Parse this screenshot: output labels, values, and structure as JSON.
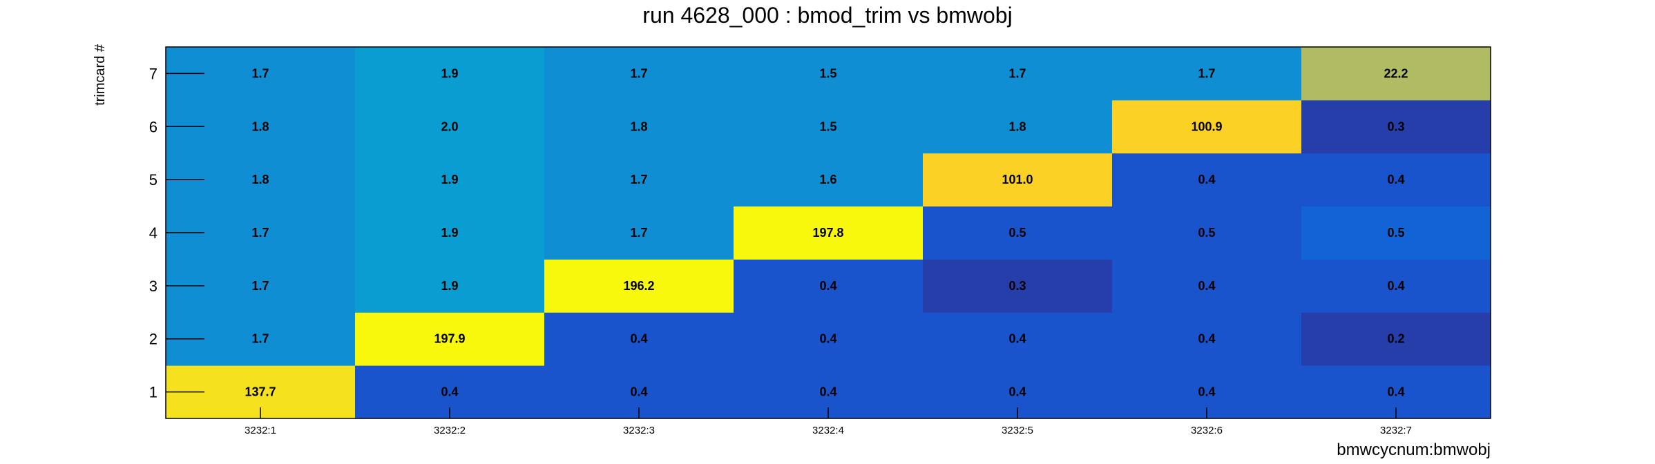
{
  "chart_data": {
    "type": "heatmap",
    "title": "run 4628_000 : bmod_trim vs bmwobj",
    "xlabel": "bmwcycnum:bmwobj",
    "ylabel": "trimcard #",
    "x_categories": [
      "3232:1",
      "3232:2",
      "3232:3",
      "3232:4",
      "3232:5",
      "3232:6",
      "3232:7"
    ],
    "y_categories": [
      "1",
      "2",
      "3",
      "4",
      "5",
      "6",
      "7"
    ],
    "values": [
      [
        137.7,
        0.4,
        0.4,
        0.4,
        0.4,
        0.4,
        0.4
      ],
      [
        1.7,
        197.9,
        0.4,
        0.4,
        0.4,
        0.4,
        0.2
      ],
      [
        1.7,
        1.9,
        196.2,
        0.4,
        0.3,
        0.4,
        0.4
      ],
      [
        1.7,
        1.9,
        1.7,
        197.8,
        0.5,
        0.5,
        0.5
      ],
      [
        1.8,
        1.9,
        1.7,
        1.6,
        101.0,
        0.4,
        0.4
      ],
      [
        1.8,
        2.0,
        1.8,
        1.5,
        1.8,
        100.9,
        0.3
      ],
      [
        1.7,
        1.9,
        1.7,
        1.5,
        1.7,
        1.7,
        22.2
      ]
    ],
    "value_labels": [
      [
        "137.7",
        "0.4",
        "0.4",
        "0.4",
        "0.4",
        "0.4",
        "0.4"
      ],
      [
        "1.7",
        "197.9",
        "0.4",
        "0.4",
        "0.4",
        "0.4",
        "0.2"
      ],
      [
        "1.7",
        "1.9",
        "196.2",
        "0.4",
        "0.3",
        "0.4",
        "0.4"
      ],
      [
        "1.7",
        "1.9",
        "1.7",
        "197.8",
        "0.5",
        "0.5",
        "0.5"
      ],
      [
        "1.8",
        "1.9",
        "1.7",
        "1.6",
        "101.0",
        "0.4",
        "0.4"
      ],
      [
        "1.8",
        "2.0",
        "1.8",
        "1.5",
        "1.8",
        "100.9",
        "0.3"
      ],
      [
        "1.7",
        "1.9",
        "1.7",
        "1.5",
        "1.7",
        "1.7",
        "22.2"
      ]
    ],
    "colors": [
      [
        "#f5e11e",
        "#1a54cc",
        "#1a54cc",
        "#1a54cc",
        "#1a54cc",
        "#1a54cc",
        "#1a54cc"
      ],
      [
        "#108ed4",
        "#f8f80c",
        "#1a54cc",
        "#1a54cc",
        "#1a54cc",
        "#1a54cc",
        "#263ea9"
      ],
      [
        "#108ed4",
        "#0a9dd1",
        "#f8f80c",
        "#1a54cc",
        "#263ea9",
        "#1a54cc",
        "#1a54cc"
      ],
      [
        "#108ed4",
        "#0a9dd1",
        "#108ed4",
        "#f8f80c",
        "#1a54cc",
        "#1a54cc",
        "#1163d6"
      ],
      [
        "#108ed4",
        "#0a9dd1",
        "#108ed4",
        "#108ed4",
        "#fbd125",
        "#1a54cc",
        "#1a54cc"
      ],
      [
        "#108ed4",
        "#0a9dd1",
        "#108ed4",
        "#108ed4",
        "#108ed4",
        "#fbd125",
        "#263ea9"
      ],
      [
        "#108ed4",
        "#0a9dd1",
        "#108ed4",
        "#108ed4",
        "#108ed4",
        "#108ed4",
        "#b0bb64"
      ]
    ],
    "grid": false,
    "legend": "none"
  }
}
